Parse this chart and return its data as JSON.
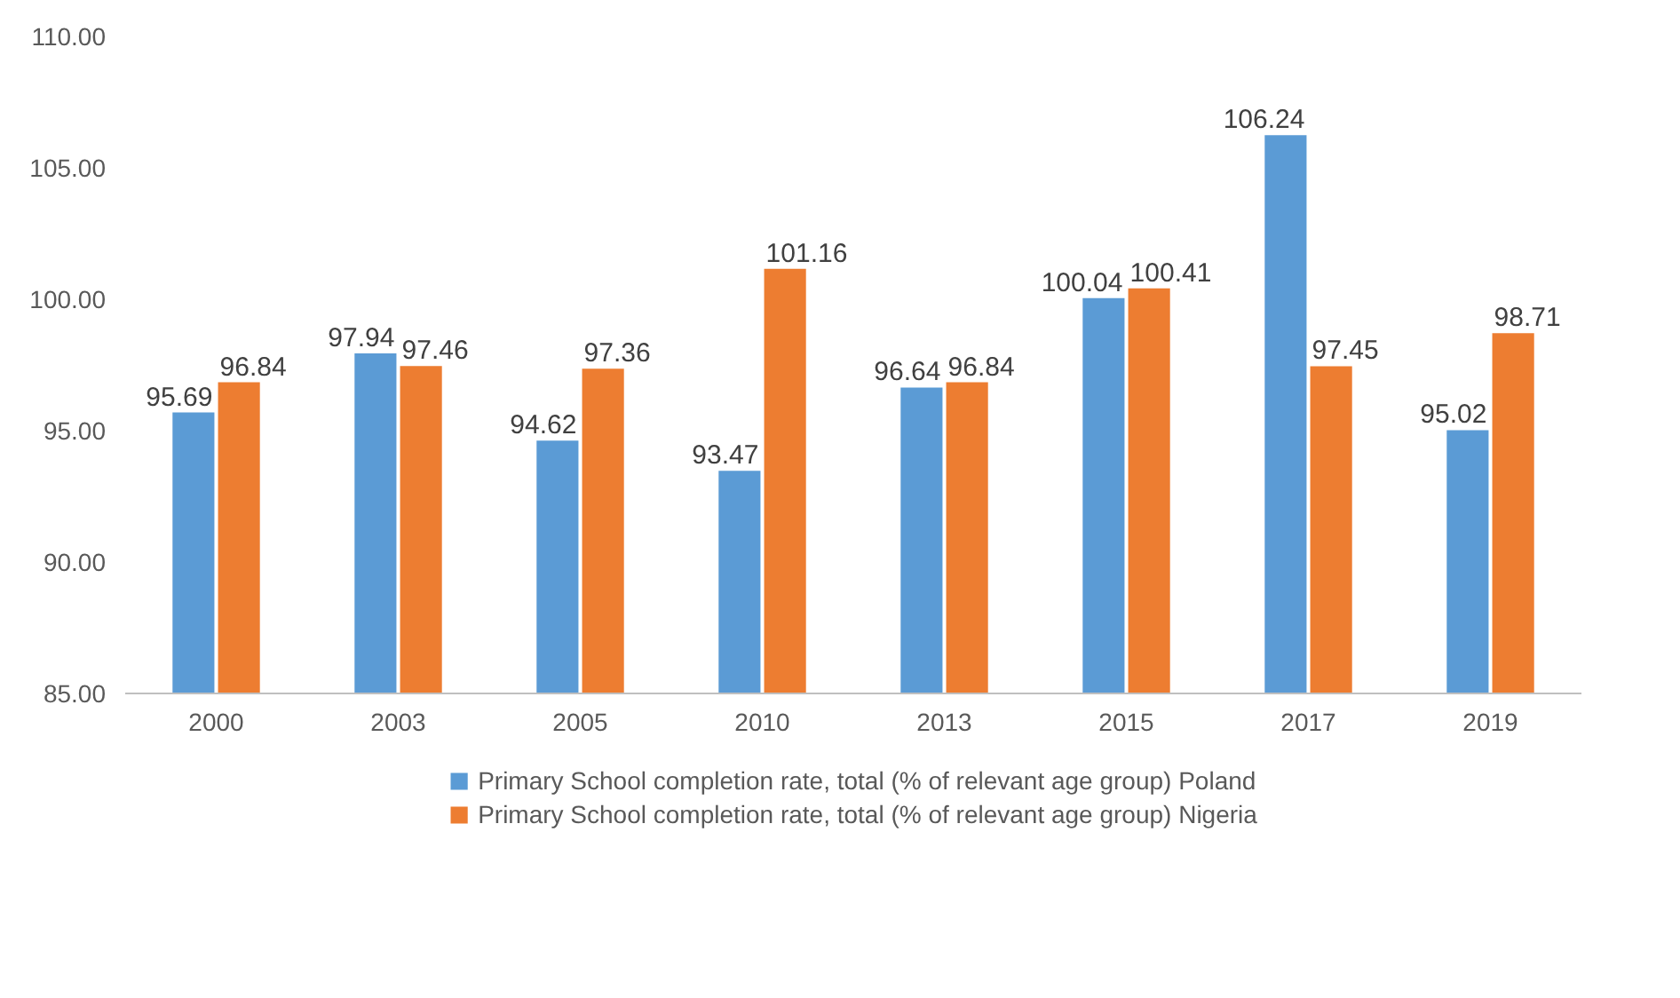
{
  "chart_data": {
    "type": "bar",
    "categories": [
      "2000",
      "2003",
      "2005",
      "2010",
      "2013",
      "2015",
      "2017",
      "2019"
    ],
    "series": [
      {
        "name": "Primary School completion rate, total (% of relevant age group) Poland",
        "color": "#5b9bd5",
        "values": [
          95.69,
          97.94,
          94.62,
          93.47,
          96.64,
          100.04,
          106.24,
          95.02
        ]
      },
      {
        "name": "Primary School completion rate, total (% of relevant age group) Nigeria",
        "color": "#ed7d31",
        "values": [
          96.84,
          97.46,
          97.36,
          101.16,
          96.84,
          100.41,
          97.45,
          98.71
        ]
      }
    ],
    "ylim": [
      85,
      110
    ],
    "yticks": [
      {
        "value": 85,
        "label": "85.00"
      },
      {
        "value": 90,
        "label": "90.00"
      },
      {
        "value": 95,
        "label": "95.00"
      },
      {
        "value": 100,
        "label": "100.00"
      },
      {
        "value": 105,
        "label": "105.00"
      },
      {
        "value": 110,
        "label": "110.00"
      }
    ],
    "data_labels": true,
    "grid": false,
    "legend": "bottom"
  }
}
